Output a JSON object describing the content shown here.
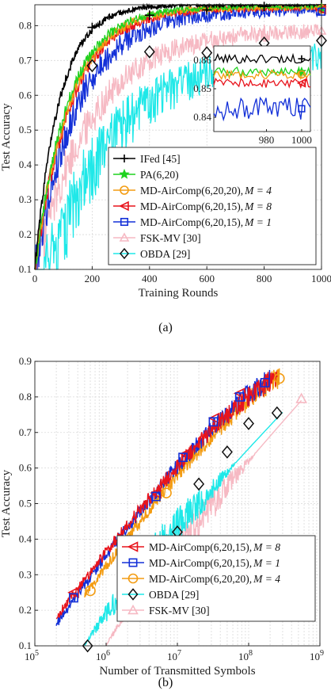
{
  "chart_data": [
    {
      "type": "line",
      "caption": "(a)",
      "xlabel": "Training Rounds",
      "ylabel": "Test Accuracy",
      "xlim": [
        0,
        1000
      ],
      "ylim": [
        0.1,
        0.86
      ],
      "xticks": [
        "0",
        "200",
        "400",
        "600",
        "800",
        "1000"
      ],
      "yticks": [
        "0.1",
        "0.2",
        "0.3",
        "0.4",
        "0.5",
        "0.6",
        "0.7",
        "0.8"
      ],
      "grid": true,
      "legend_position": "bottom-right",
      "series": [
        {
          "name": "IFed [45]",
          "color": "#000000",
          "marker": "plus",
          "final": 0.86,
          "tau": 85,
          "noise": 0.004
        },
        {
          "name": "PA(6,20)",
          "color": "#1fd21f",
          "marker": "star",
          "final": 0.855,
          "tau": 115,
          "noise": 0.006
        },
        {
          "name": "MD-AirComp(6,20,20),",
          "mlabel": "M = 4",
          "color": "#f39c12",
          "marker": "circle",
          "final": 0.853,
          "tau": 120,
          "noise": 0.007
        },
        {
          "name": "MD-AirComp(6,20,15),",
          "mlabel": "M = 8",
          "color": "#e8141c",
          "marker": "triangle-left",
          "final": 0.851,
          "tau": 125,
          "noise": 0.008
        },
        {
          "name": "MD-AirComp(6,20,15),",
          "mlabel": "M = 1",
          "color": "#1330d8",
          "marker": "square",
          "final": 0.845,
          "tau": 150,
          "noise": 0.016
        },
        {
          "name": "FSK-MV [30]",
          "color": "#f6b9c3",
          "marker": "triangle-up",
          "final": 0.79,
          "tau": 200,
          "noise": 0.02
        },
        {
          "name": "OBDA [29]",
          "color": "#1fe8e8",
          "marker": "diamond",
          "final": 0.76,
          "tau": 230,
          "noise": 0.045
        }
      ],
      "marker_points": {
        "IFed [45]": [
          [
            200,
            0.795
          ],
          [
            400,
            0.83
          ],
          [
            600,
            0.845
          ],
          [
            800,
            0.855
          ],
          [
            1000,
            0.86
          ]
        ],
        "OBDA [29]": [
          [
            200,
            0.685
          ],
          [
            400,
            0.725
          ],
          [
            600,
            0.722
          ],
          [
            800,
            0.75
          ],
          [
            1000,
            0.757
          ]
        ]
      },
      "inset": {
        "xlim": [
          950,
          1005
        ],
        "ylim": [
          0.835,
          0.865
        ],
        "xticks": [
          "980",
          "1000"
        ],
        "yticks": [
          "0.84",
          "0.85",
          "0.86"
        ],
        "series_levels": [
          {
            "name": "IFed [45]",
            "level": 0.8605
          },
          {
            "name": "PA(6,20)",
            "level": 0.856
          },
          {
            "name": "MD-AirComp(6,20,20), M = 4",
            "level": 0.855
          },
          {
            "name": "MD-AirComp(6,20,15), M = 8",
            "level": 0.852
          },
          {
            "name": "MD-AirComp(6,20,15), M = 1",
            "level": 0.843
          }
        ]
      }
    },
    {
      "type": "line",
      "caption": "(b)",
      "xlabel": "Number of Transmitted Symbols",
      "ylabel": "Test Accuracy",
      "xscale": "log",
      "xlim": [
        100000,
        1000000000
      ],
      "ylim": [
        0.1,
        0.9
      ],
      "xticks": [
        "10",
        "10",
        "10",
        "10",
        "10"
      ],
      "xtick_exponents": [
        "5",
        "6",
        "7",
        "8",
        "9"
      ],
      "yticks": [
        "0.1",
        "0.2",
        "0.3",
        "0.4",
        "0.5",
        "0.6",
        "0.7",
        "0.8",
        "0.9"
      ],
      "grid": true,
      "legend_position": "bottom-right",
      "series": [
        {
          "name": "MD-AirComp(6,20,15),",
          "mlabel": "M = 8",
          "color": "#e8141c",
          "marker": "triangle-left",
          "x_start": 200000,
          "x_end": 250000000,
          "y_start": 0.18,
          "y_end": 0.852
        },
        {
          "name": "MD-AirComp(6,20,15),",
          "mlabel": "M = 1",
          "color": "#1330d8",
          "marker": "square",
          "x_start": 200000,
          "x_end": 200000000,
          "y_start": 0.16,
          "y_end": 0.845
        },
        {
          "name": "MD-AirComp(6,20,20),",
          "mlabel": "M = 4",
          "color": "#f39c12",
          "marker": "circle",
          "x_start": 500000,
          "x_end": 270000000,
          "y_start": 0.24,
          "y_end": 0.853
        },
        {
          "name": "OBDA [29]",
          "color": "#1fe8e8",
          "marker": "diamond",
          "x_start": 500000,
          "x_end": 300000000,
          "y_start": 0.1,
          "y_end": 0.757
        },
        {
          "name": "FSK-MV [30]",
          "color": "#f6b9c3",
          "marker": "triangle-up",
          "x_start": 1000000,
          "x_end": 550000000,
          "y_start": 0.1,
          "y_end": 0.79
        }
      ],
      "marker_points": {
        "MD-AirComp(6,20,15), M = 8": [
          [
            350000,
            0.25
          ],
          [
            5000000,
            0.53
          ],
          [
            13000000,
            0.64
          ],
          [
            33000000,
            0.74
          ],
          [
            75000000,
            0.81
          ]
        ],
        "MD-AirComp(6,20,15), M = 1": [
          [
            350000,
            0.235
          ],
          [
            5000000,
            0.52
          ],
          [
            12000000,
            0.63
          ],
          [
            32000000,
            0.73
          ],
          [
            75000000,
            0.8
          ],
          [
            170000000,
            0.84
          ]
        ],
        "MD-AirComp(6,20,20), M = 4": [
          [
            600000,
            0.255
          ],
          [
            7000000,
            0.53
          ],
          [
            270000000,
            0.852
          ]
        ],
        "OBDA [29]": [
          [
            550000,
            0.1
          ],
          [
            10000000,
            0.42
          ],
          [
            20000000,
            0.555
          ],
          [
            50000000,
            0.645
          ],
          [
            100000000,
            0.725
          ],
          [
            250000000,
            0.755
          ]
        ],
        "FSK-MV [30]": [
          [
            550000000,
            0.795
          ]
        ]
      }
    }
  ]
}
